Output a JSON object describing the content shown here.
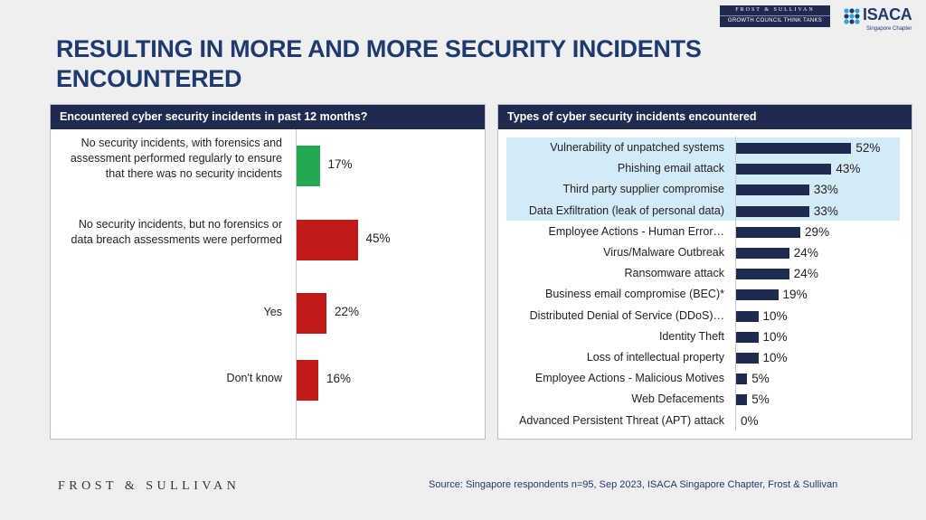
{
  "title": "RESULTING IN MORE AND MORE SECURITY INCIDENTS ENCOUNTERED",
  "brand": {
    "fs_badge_line1": "FROST & SULLIVAN",
    "fs_badge_line2": "GROWTH COUNCIL THINK TANKS",
    "isaca_name": "ISACA",
    "isaca_chapter": "Singapore Chapter",
    "footer_logo": "FROST & SULLIVAN"
  },
  "source": "Source: Singapore respondents n=95, Sep 2023, ISACA Singapore Chapter, Frost & Sullivan",
  "colors": {
    "navy": "#1e2a4f",
    "green": "#23a94f",
    "red": "#c01a1a",
    "highlight": "#d3ebf7"
  },
  "chart_data": [
    {
      "type": "bar",
      "orientation": "horizontal",
      "title": "Encountered cyber security incidents in past 12 months?",
      "categories": [
        "No security incidents, with forensics and assessment performed regularly to ensure that there was no security incidents",
        "No security incidents, but no forensics or data breach assessments were performed",
        "Yes",
        "Don't know"
      ],
      "values": [
        17,
        45,
        22,
        16
      ],
      "value_labels": [
        "17%",
        "45%",
        "22%",
        "16%"
      ],
      "bar_colors": [
        "#23a94f",
        "#c01a1a",
        "#c01a1a",
        "#c01a1a"
      ],
      "xlim": [
        0,
        100
      ]
    },
    {
      "type": "bar",
      "orientation": "horizontal",
      "title": "Types of cyber security incidents encountered",
      "categories": [
        "Vulnerability of unpatched systems",
        "Phishing email attack",
        "Third party supplier compromise",
        "Data Exfiltration (leak of personal data)",
        "Employee Actions - Human Error…",
        "Virus/Malware Outbreak",
        "Ransomware attack",
        "Business email compromise (BEC)*",
        "Distributed Denial of Service (DDoS)…",
        "Identity Theft",
        "Loss of intellectual property",
        "Employee Actions - Malicious Motives",
        "Web Defacements",
        "Advanced Persistent Threat (APT) attack"
      ],
      "values": [
        52,
        43,
        33,
        33,
        29,
        24,
        24,
        19,
        10,
        10,
        10,
        5,
        5,
        0
      ],
      "value_labels": [
        "52%",
        "43%",
        "33%",
        "33%",
        "29%",
        "24%",
        "24%",
        "19%",
        "10%",
        "10%",
        "10%",
        "5%",
        "5%",
        "0%"
      ],
      "highlighted_rows": 4,
      "bar_color": "#1e2a4f",
      "xlim": [
        0,
        100
      ]
    }
  ]
}
